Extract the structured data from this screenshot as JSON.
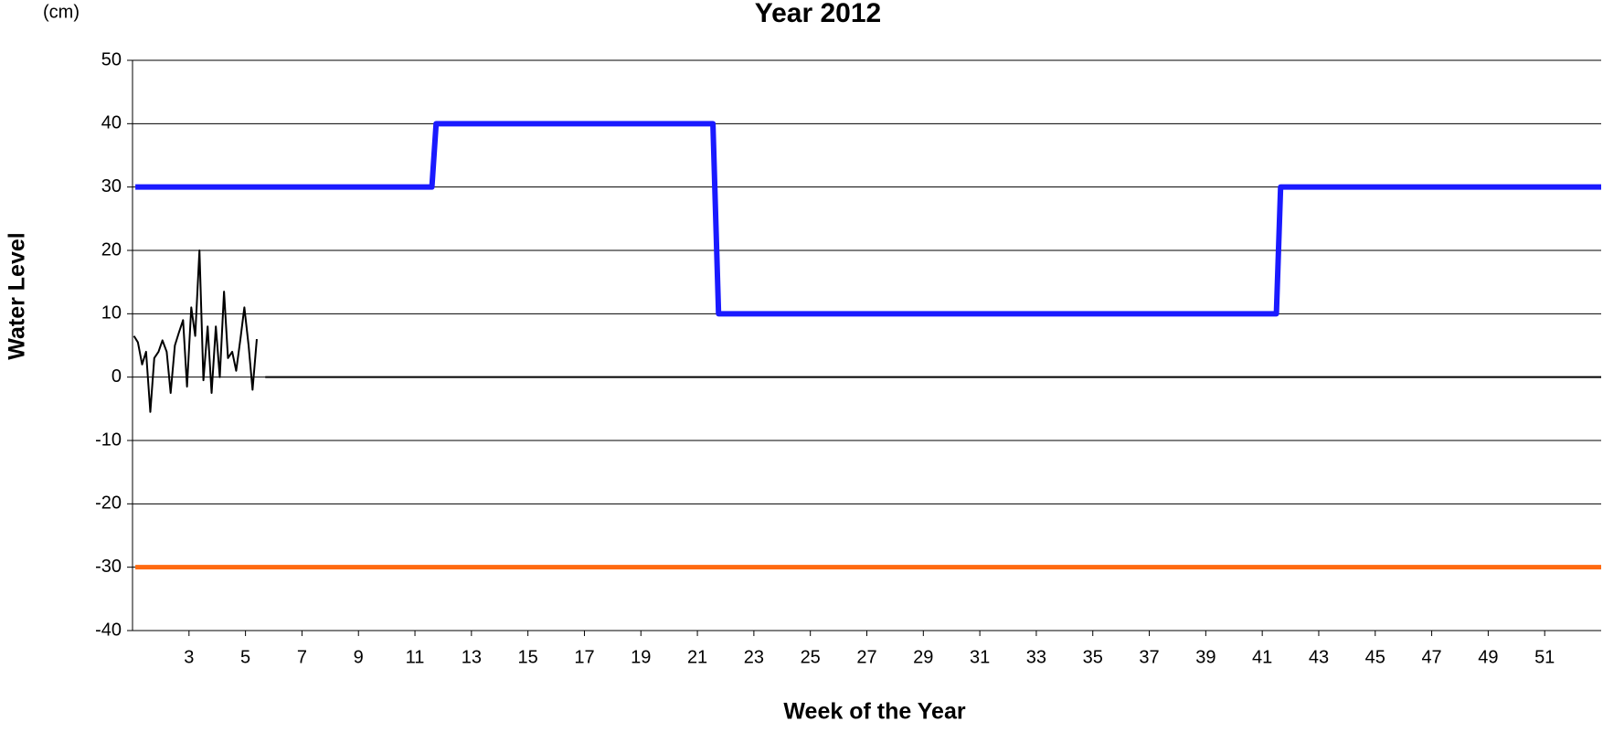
{
  "chart_data": {
    "type": "line",
    "title": "Year 2012",
    "unit_label": "(cm)",
    "x_label": "Week of the Year",
    "y_label": "Water Level",
    "xlim": [
      1,
      53
    ],
    "xticks": [
      3,
      5,
      7,
      9,
      11,
      13,
      15,
      17,
      19,
      21,
      23,
      25,
      27,
      29,
      31,
      33,
      35,
      37,
      39,
      41,
      43,
      45,
      47,
      49,
      51
    ],
    "ylim": [
      -40,
      50
    ],
    "yticks": [
      -40,
      -30,
      -20,
      -10,
      0,
      10,
      20,
      30,
      40,
      50
    ],
    "grid": true,
    "series": [
      {
        "color": "#1a1aff",
        "width": 6,
        "x": [
          1.1,
          11.6,
          11.75,
          21.55,
          21.75,
          41.5,
          41.65,
          53
        ],
        "values": [
          30,
          30,
          40,
          40,
          10,
          10,
          30,
          30
        ]
      },
      {
        "color": "#ff6a10",
        "width": 5,
        "x": [
          1.1,
          53
        ],
        "values": [
          -30,
          -30
        ]
      },
      {
        "color": "#000000",
        "width": 2,
        "x": [
          1.05,
          1.19,
          1.34,
          1.48,
          1.63,
          1.77,
          1.92,
          2.06,
          2.21,
          2.35,
          2.5,
          2.64,
          2.79,
          2.93,
          3.08,
          3.22,
          3.37,
          3.51,
          3.66,
          3.8,
          3.95,
          4.09,
          4.24,
          4.38,
          4.53,
          4.67,
          4.82,
          4.96,
          5.11,
          5.25,
          5.4,
          5.5,
          5.7,
          53
        ],
        "values": [
          6.5,
          5.5,
          2,
          4,
          -5.5,
          3,
          4,
          5.8,
          4,
          -2.5,
          5,
          7,
          9,
          -1.5,
          11,
          6.5,
          20,
          -0.5,
          8,
          -2.5,
          8,
          0,
          13.5,
          3,
          4,
          1,
          6,
          11,
          5,
          -2,
          6,
          null,
          0,
          0
        ]
      }
    ]
  }
}
